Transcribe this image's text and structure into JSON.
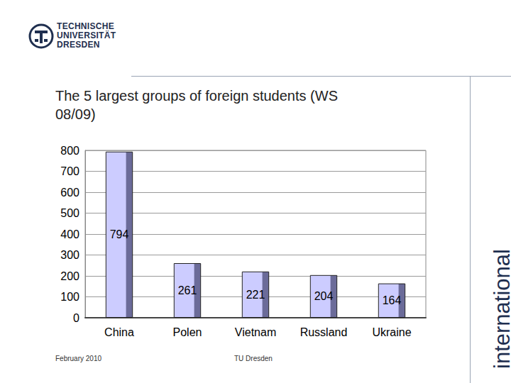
{
  "chart_data": {
    "type": "bar",
    "title": "The 5 largest groups of foreign students (WS 08/09)",
    "categories": [
      "China",
      "Polen",
      "Vietnam",
      "Russland",
      "Ukraine"
    ],
    "values": [
      794,
      261,
      221,
      204,
      164
    ],
    "color": "#ccccff",
    "ylim": [
      0,
      800
    ],
    "yticks": [
      0,
      100,
      200,
      300,
      400,
      500,
      600,
      700,
      800
    ],
    "grid": true,
    "data_labels": true
  },
  "header": {
    "logo": [
      "TECHNISCHE",
      "UNIVERSITÄT",
      "DRESDEN"
    ]
  },
  "footer": {
    "date": "February 2010",
    "org": "TU Dresden"
  },
  "side_label": "international"
}
